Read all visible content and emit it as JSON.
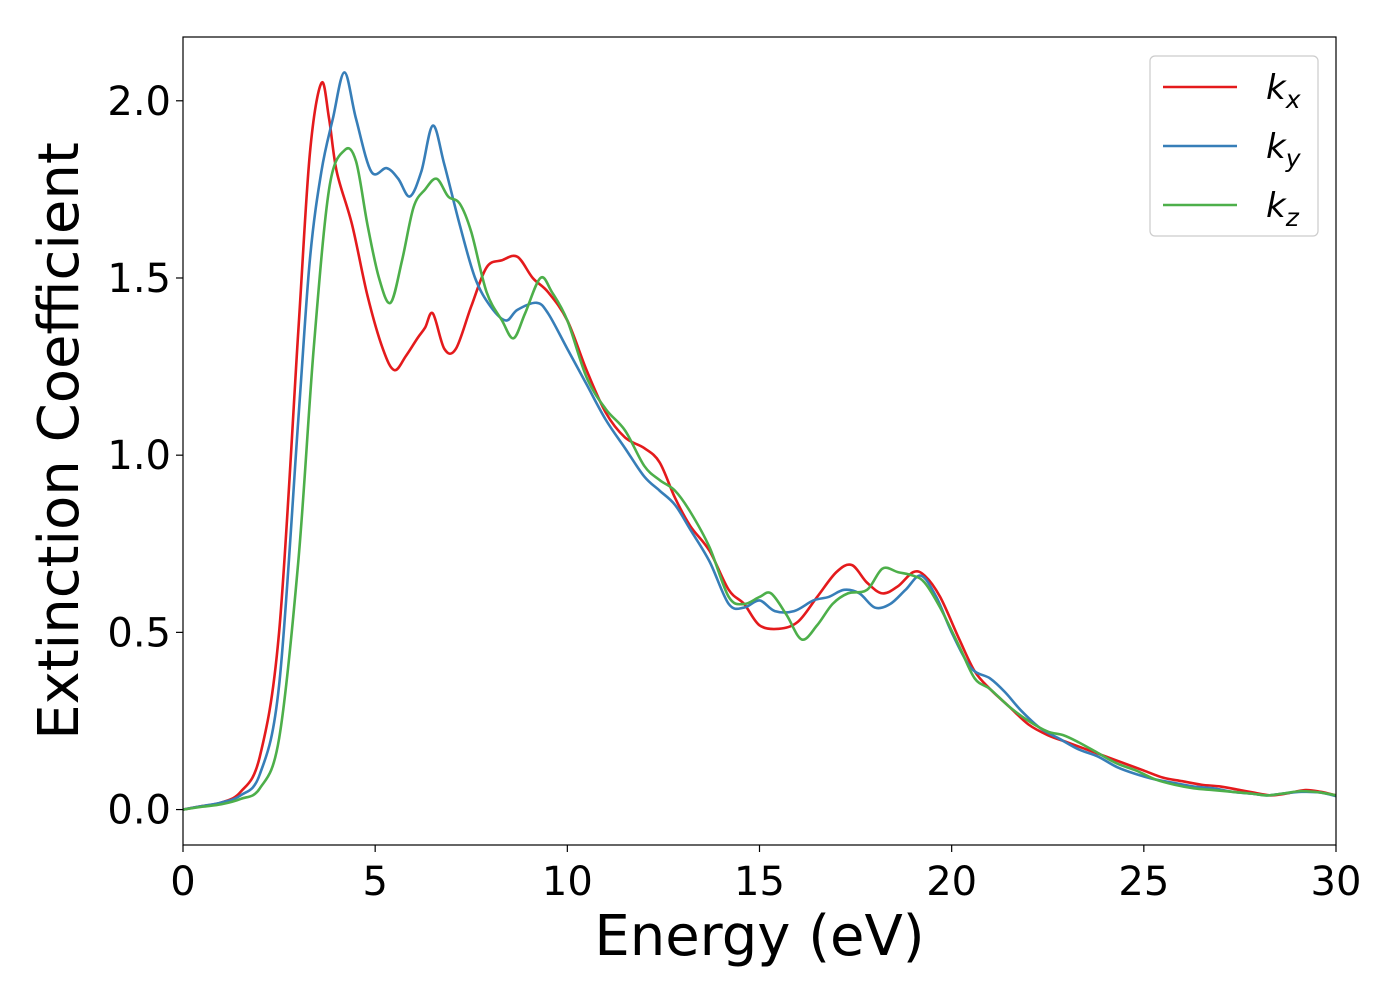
{
  "chart_data": {
    "type": "line",
    "xlabel": "Energy (eV)",
    "ylabel": "Extinction Coefficient",
    "xlim": [
      0,
      30
    ],
    "ylim": [
      -0.1,
      2.18
    ],
    "xticks": [
      0,
      5,
      10,
      15,
      20,
      25,
      30
    ],
    "yticks": [
      0.0,
      0.5,
      1.0,
      1.5,
      2.0
    ],
    "xtick_labels": [
      "0",
      "5",
      "10",
      "15",
      "20",
      "25",
      "30"
    ],
    "ytick_labels": [
      "0.0",
      "0.5",
      "1.0",
      "1.5",
      "2.0"
    ],
    "grid": false,
    "legend_position": "top-right",
    "series": [
      {
        "name": "k",
        "subscript": "x",
        "color": "#e41a1c",
        "points": [
          [
            0,
            0
          ],
          [
            0.5,
            0.01
          ],
          [
            1,
            0.02
          ],
          [
            1.5,
            0.05
          ],
          [
            2,
            0.15
          ],
          [
            2.5,
            0.5
          ],
          [
            3,
            1.35
          ],
          [
            3.3,
            1.85
          ],
          [
            3.6,
            2.05
          ],
          [
            3.8,
            1.95
          ],
          [
            4,
            1.8
          ],
          [
            4.4,
            1.65
          ],
          [
            4.8,
            1.45
          ],
          [
            5.2,
            1.3
          ],
          [
            5.5,
            1.24
          ],
          [
            5.8,
            1.28
          ],
          [
            6.1,
            1.33
          ],
          [
            6.3,
            1.36
          ],
          [
            6.5,
            1.4
          ],
          [
            6.8,
            1.3
          ],
          [
            7.1,
            1.3
          ],
          [
            7.5,
            1.42
          ],
          [
            7.9,
            1.53
          ],
          [
            8.3,
            1.55
          ],
          [
            8.7,
            1.56
          ],
          [
            9.1,
            1.5
          ],
          [
            9.5,
            1.46
          ],
          [
            10,
            1.38
          ],
          [
            10.5,
            1.24
          ],
          [
            11,
            1.12
          ],
          [
            11.5,
            1.05
          ],
          [
            12,
            1.02
          ],
          [
            12.4,
            0.98
          ],
          [
            12.8,
            0.88
          ],
          [
            13.2,
            0.8
          ],
          [
            13.7,
            0.73
          ],
          [
            14.2,
            0.62
          ],
          [
            14.6,
            0.58
          ],
          [
            15,
            0.52
          ],
          [
            15.5,
            0.51
          ],
          [
            16,
            0.53
          ],
          [
            16.5,
            0.6
          ],
          [
            17,
            0.67
          ],
          [
            17.4,
            0.69
          ],
          [
            17.8,
            0.64
          ],
          [
            18.2,
            0.61
          ],
          [
            18.6,
            0.63
          ],
          [
            19,
            0.67
          ],
          [
            19.3,
            0.66
          ],
          [
            19.7,
            0.6
          ],
          [
            20.2,
            0.48
          ],
          [
            20.6,
            0.39
          ],
          [
            21,
            0.34
          ],
          [
            21.5,
            0.29
          ],
          [
            22,
            0.24
          ],
          [
            22.5,
            0.21
          ],
          [
            23,
            0.19
          ],
          [
            23.5,
            0.17
          ],
          [
            24,
            0.15
          ],
          [
            24.5,
            0.13
          ],
          [
            25,
            0.11
          ],
          [
            25.5,
            0.09
          ],
          [
            26,
            0.08
          ],
          [
            26.5,
            0.07
          ],
          [
            27,
            0.065
          ],
          [
            27.5,
            0.055
          ],
          [
            28,
            0.045
          ],
          [
            28.3,
            0.04
          ],
          [
            28.7,
            0.045
          ],
          [
            29.2,
            0.055
          ],
          [
            29.6,
            0.05
          ],
          [
            30,
            0.04
          ]
        ]
      },
      {
        "name": "k",
        "subscript": "y",
        "color": "#377eb8",
        "points": [
          [
            0,
            0
          ],
          [
            0.5,
            0.01
          ],
          [
            1,
            0.02
          ],
          [
            1.5,
            0.04
          ],
          [
            2,
            0.1
          ],
          [
            2.5,
            0.35
          ],
          [
            3,
            1.1
          ],
          [
            3.3,
            1.55
          ],
          [
            3.6,
            1.8
          ],
          [
            3.9,
            1.95
          ],
          [
            4.2,
            2.08
          ],
          [
            4.5,
            1.95
          ],
          [
            4.9,
            1.8
          ],
          [
            5.3,
            1.81
          ],
          [
            5.6,
            1.78
          ],
          [
            5.9,
            1.73
          ],
          [
            6.2,
            1.8
          ],
          [
            6.5,
            1.93
          ],
          [
            6.8,
            1.82
          ],
          [
            7.2,
            1.65
          ],
          [
            7.6,
            1.5
          ],
          [
            8,
            1.42
          ],
          [
            8.4,
            1.38
          ],
          [
            8.7,
            1.41
          ],
          [
            9.2,
            1.43
          ],
          [
            9.5,
            1.4
          ],
          [
            10,
            1.3
          ],
          [
            10.5,
            1.2
          ],
          [
            11,
            1.1
          ],
          [
            11.5,
            1.02
          ],
          [
            12,
            0.94
          ],
          [
            12.4,
            0.9
          ],
          [
            12.8,
            0.86
          ],
          [
            13.2,
            0.79
          ],
          [
            13.7,
            0.7
          ],
          [
            14.2,
            0.58
          ],
          [
            14.6,
            0.57
          ],
          [
            15,
            0.59
          ],
          [
            15.4,
            0.56
          ],
          [
            15.9,
            0.56
          ],
          [
            16.4,
            0.59
          ],
          [
            16.8,
            0.6
          ],
          [
            17.2,
            0.62
          ],
          [
            17.6,
            0.61
          ],
          [
            18,
            0.57
          ],
          [
            18.4,
            0.58
          ],
          [
            18.8,
            0.62
          ],
          [
            19.2,
            0.66
          ],
          [
            19.6,
            0.6
          ],
          [
            20,
            0.5
          ],
          [
            20.5,
            0.4
          ],
          [
            21,
            0.37
          ],
          [
            21.4,
            0.33
          ],
          [
            21.8,
            0.28
          ],
          [
            22.3,
            0.23
          ],
          [
            22.8,
            0.2
          ],
          [
            23.3,
            0.17
          ],
          [
            23.8,
            0.15
          ],
          [
            24.3,
            0.12
          ],
          [
            24.8,
            0.1
          ],
          [
            25.3,
            0.085
          ],
          [
            25.8,
            0.075
          ],
          [
            26.3,
            0.065
          ],
          [
            26.8,
            0.06
          ],
          [
            27.3,
            0.05
          ],
          [
            27.8,
            0.045
          ],
          [
            28.2,
            0.04
          ],
          [
            28.6,
            0.045
          ],
          [
            29.1,
            0.05
          ],
          [
            29.6,
            0.048
          ],
          [
            30,
            0.038
          ]
        ]
      },
      {
        "name": "k",
        "subscript": "z",
        "color": "#4daf4a",
        "points": [
          [
            0,
            0
          ],
          [
            0.5,
            0.008
          ],
          [
            1,
            0.015
          ],
          [
            1.5,
            0.03
          ],
          [
            2,
            0.06
          ],
          [
            2.5,
            0.2
          ],
          [
            3,
            0.7
          ],
          [
            3.4,
            1.3
          ],
          [
            3.8,
            1.75
          ],
          [
            4.2,
            1.86
          ],
          [
            4.5,
            1.83
          ],
          [
            4.8,
            1.65
          ],
          [
            5.1,
            1.5
          ],
          [
            5.4,
            1.43
          ],
          [
            5.7,
            1.55
          ],
          [
            6,
            1.7
          ],
          [
            6.3,
            1.75
          ],
          [
            6.6,
            1.78
          ],
          [
            6.9,
            1.73
          ],
          [
            7.2,
            1.71
          ],
          [
            7.5,
            1.63
          ],
          [
            7.9,
            1.46
          ],
          [
            8.3,
            1.38
          ],
          [
            8.6,
            1.33
          ],
          [
            8.9,
            1.4
          ],
          [
            9.3,
            1.5
          ],
          [
            9.6,
            1.46
          ],
          [
            10,
            1.38
          ],
          [
            10.5,
            1.22
          ],
          [
            11,
            1.13
          ],
          [
            11.5,
            1.07
          ],
          [
            12,
            0.97
          ],
          [
            12.4,
            0.93
          ],
          [
            12.8,
            0.9
          ],
          [
            13.2,
            0.84
          ],
          [
            13.7,
            0.74
          ],
          [
            14.2,
            0.6
          ],
          [
            14.6,
            0.58
          ],
          [
            15,
            0.6
          ],
          [
            15.3,
            0.61
          ],
          [
            15.7,
            0.55
          ],
          [
            16.1,
            0.48
          ],
          [
            16.5,
            0.52
          ],
          [
            16.9,
            0.58
          ],
          [
            17.3,
            0.61
          ],
          [
            17.8,
            0.62
          ],
          [
            18.2,
            0.68
          ],
          [
            18.6,
            0.67
          ],
          [
            19,
            0.66
          ],
          [
            19.3,
            0.64
          ],
          [
            19.7,
            0.57
          ],
          [
            20.2,
            0.46
          ],
          [
            20.6,
            0.37
          ],
          [
            21,
            0.34
          ],
          [
            21.5,
            0.29
          ],
          [
            22,
            0.25
          ],
          [
            22.5,
            0.22
          ],
          [
            22.9,
            0.21
          ],
          [
            23.3,
            0.19
          ],
          [
            23.8,
            0.16
          ],
          [
            24.3,
            0.13
          ],
          [
            24.8,
            0.11
          ],
          [
            25.3,
            0.085
          ],
          [
            25.8,
            0.07
          ],
          [
            26.3,
            0.06
          ],
          [
            26.8,
            0.055
          ],
          [
            27.3,
            0.05
          ],
          [
            27.8,
            0.045
          ],
          [
            28.2,
            0.04
          ],
          [
            28.6,
            0.045
          ],
          [
            29.1,
            0.052
          ],
          [
            29.6,
            0.048
          ],
          [
            30,
            0.04
          ]
        ]
      }
    ]
  }
}
